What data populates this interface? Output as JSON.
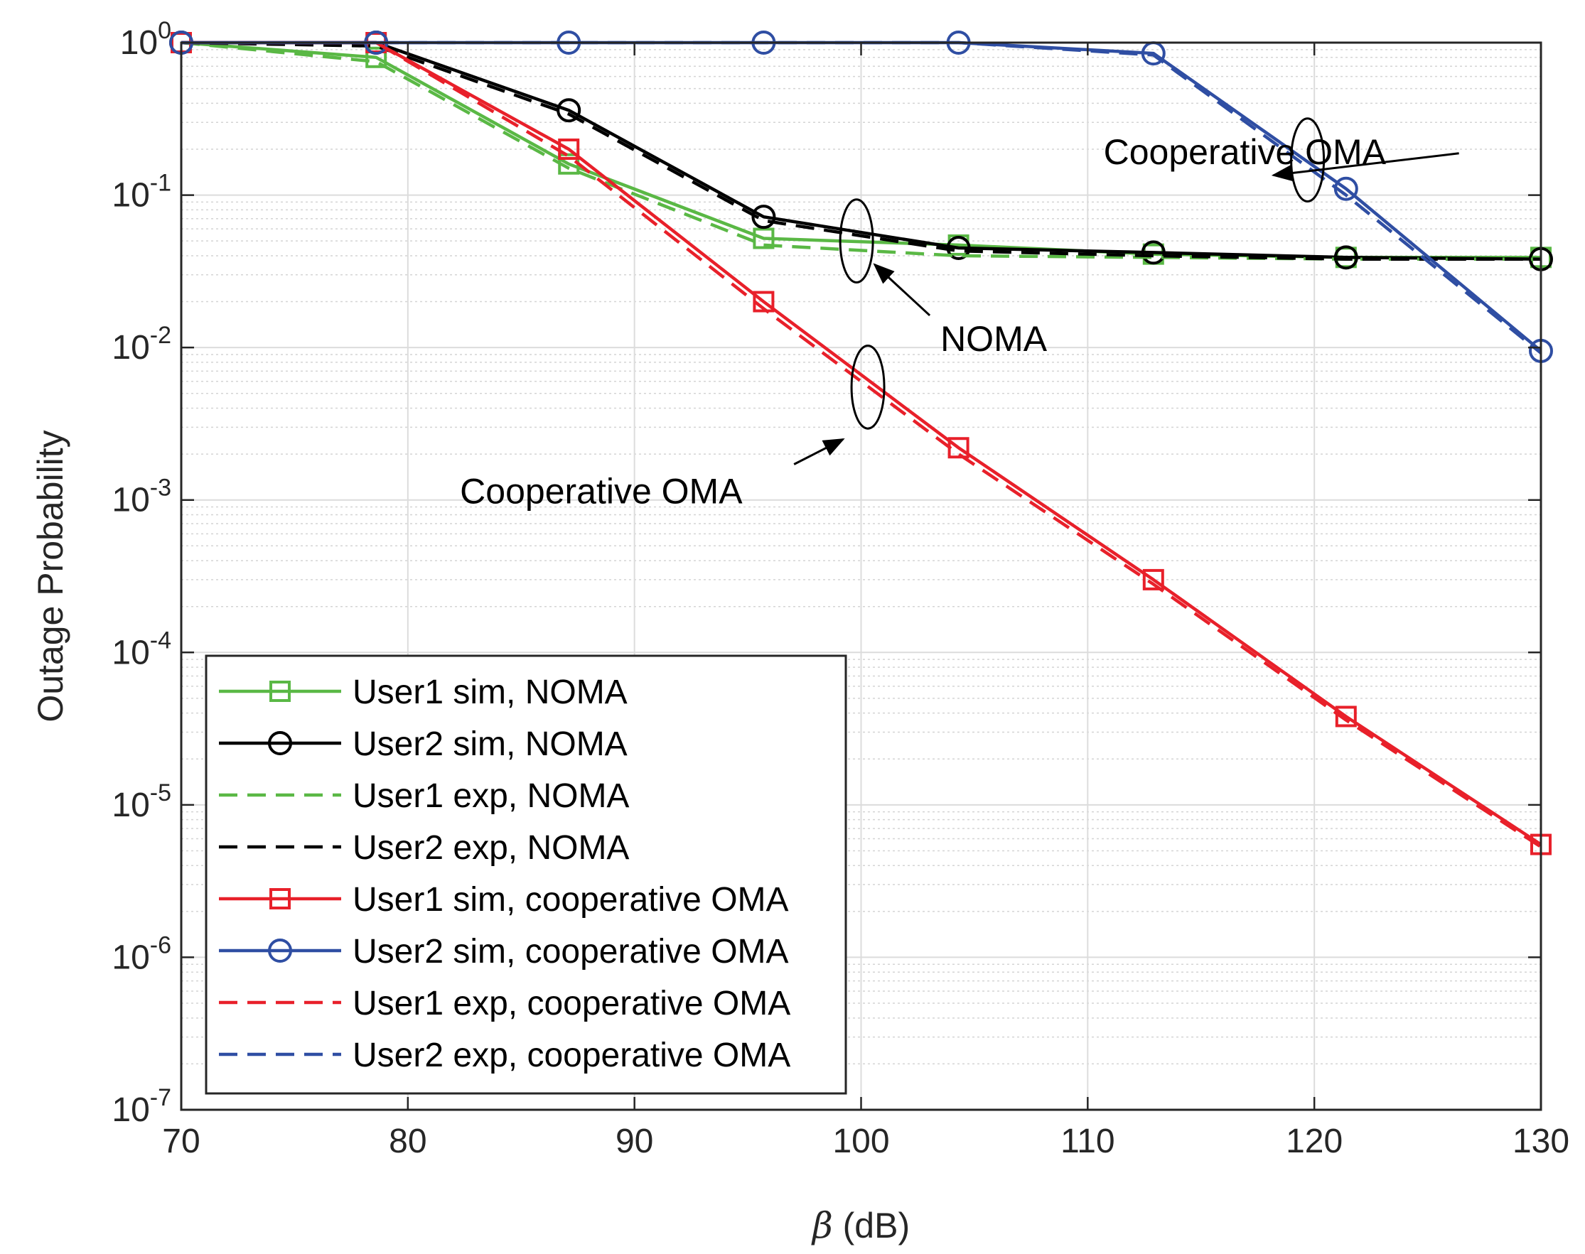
{
  "chart_data": {
    "type": "line",
    "xlabel_symbol": "β",
    "xlabel": "(dB)",
    "ylabel": "Outage Probability",
    "xlim": [
      70,
      130
    ],
    "ylim_log10": [
      -7,
      0
    ],
    "yscale": "log",
    "grid": true,
    "legend_position": "bottom-left",
    "x_ticks": [
      70,
      80,
      90,
      100,
      110,
      120,
      130
    ],
    "x_tick_labels": [
      "70",
      "80",
      "90",
      "100",
      "110",
      "120",
      "130"
    ],
    "y_ticks": [
      {
        "base": "10",
        "exp": "0"
      },
      {
        "base": "10",
        "exp": "-1"
      },
      {
        "base": "10",
        "exp": "-2"
      },
      {
        "base": "10",
        "exp": "-3"
      },
      {
        "base": "10",
        "exp": "-4"
      },
      {
        "base": "10",
        "exp": "-5"
      },
      {
        "base": "10",
        "exp": "-6"
      },
      {
        "base": "10",
        "exp": "-7"
      }
    ],
    "series": [
      {
        "name": "User1 sim, NOMA",
        "color": "#5ab845",
        "dash": "solid",
        "marker": "square",
        "x": [
          70,
          78.6,
          87.1,
          95.7,
          104.3,
          112.9,
          121.4,
          130
        ],
        "y": [
          1.0,
          0.8,
          0.16,
          0.052,
          0.047,
          0.041,
          0.039,
          0.039
        ]
      },
      {
        "name": "User2 sim, NOMA",
        "color": "#000000",
        "dash": "solid",
        "marker": "circle",
        "x": [
          70,
          78.6,
          87.1,
          95.7,
          104.3,
          112.9,
          121.4,
          130
        ],
        "y": [
          1.0,
          1.0,
          0.36,
          0.072,
          0.045,
          0.042,
          0.039,
          0.038
        ]
      },
      {
        "name": "User1 exp, NOMA",
        "color": "#5ab845",
        "dash": "dashed",
        "marker": "none",
        "x": [
          70,
          78.6,
          87.1,
          95.7,
          104.3,
          112.9,
          121.4,
          130
        ],
        "y": [
          1.0,
          0.75,
          0.15,
          0.047,
          0.04,
          0.039,
          0.038,
          0.038
        ]
      },
      {
        "name": "User2 exp, NOMA",
        "color": "#000000",
        "dash": "dashed",
        "marker": "none",
        "x": [
          70,
          78.6,
          87.1,
          95.7,
          104.3,
          112.9,
          121.4,
          130
        ],
        "y": [
          1.0,
          0.95,
          0.34,
          0.068,
          0.043,
          0.04,
          0.038,
          0.038
        ]
      },
      {
        "name": "User1 sim, cooperative OMA",
        "color": "#e8202a",
        "dash": "solid",
        "marker": "square",
        "x": [
          70,
          78.6,
          87.1,
          95.7,
          104.3,
          112.9,
          121.4,
          130
        ],
        "y": [
          1.0,
          1.0,
          0.2,
          0.02,
          0.0022,
          0.0003,
          3.8e-05,
          5.5e-06
        ]
      },
      {
        "name": "User2 sim, cooperative OMA",
        "color": "#2f4ea3",
        "dash": "solid",
        "marker": "circle",
        "x": [
          70,
          78.6,
          87.1,
          95.7,
          104.3,
          112.9,
          121.4,
          130
        ],
        "y": [
          1.0,
          1.0,
          1.0,
          1.0,
          1.0,
          0.85,
          0.11,
          0.0095
        ]
      },
      {
        "name": "User1 exp, cooperative OMA",
        "color": "#e8202a",
        "dash": "dashed",
        "marker": "none",
        "x": [
          70,
          78.6,
          87.1,
          95.7,
          104.3,
          112.9,
          121.4,
          130
        ],
        "y": [
          1.0,
          1.0,
          0.18,
          0.018,
          0.002,
          0.00028,
          3.6e-05,
          5.3e-06
        ]
      },
      {
        "name": "User2 exp, cooperative OMA",
        "color": "#2f4ea3",
        "dash": "dashed",
        "marker": "none",
        "x": [
          70,
          78.6,
          87.1,
          95.7,
          104.3,
          112.9,
          121.4,
          130
        ],
        "y": [
          1.0,
          1.0,
          1.0,
          1.0,
          1.0,
          0.83,
          0.1,
          0.0092
        ]
      }
    ],
    "annotations": [
      {
        "text": "Cooperative OMA",
        "text_x": 110.7,
        "text_y": 0.16,
        "arrow_x": 118.2,
        "arrow_y": 0.135,
        "ellipse_x": 119.7,
        "ellipse_y": 0.17,
        "ellipse_dy": 0.17
      },
      {
        "text": "NOMA",
        "text_x": 103.5,
        "text_y": 0.0095,
        "arrow_x": 100.6,
        "arrow_y": 0.035,
        "ellipse_x": 99.8,
        "ellipse_y": 0.05,
        "ellipse_dy": 0.17
      },
      {
        "text": "Cooperative OMA",
        "text_x": 82.3,
        "text_y": 0.00095,
        "arrow_x": 99.2,
        "arrow_y": 0.0025,
        "ellipse_x": 100.3,
        "ellipse_y": 0.0055,
        "ellipse_dy": 0.17
      }
    ]
  }
}
